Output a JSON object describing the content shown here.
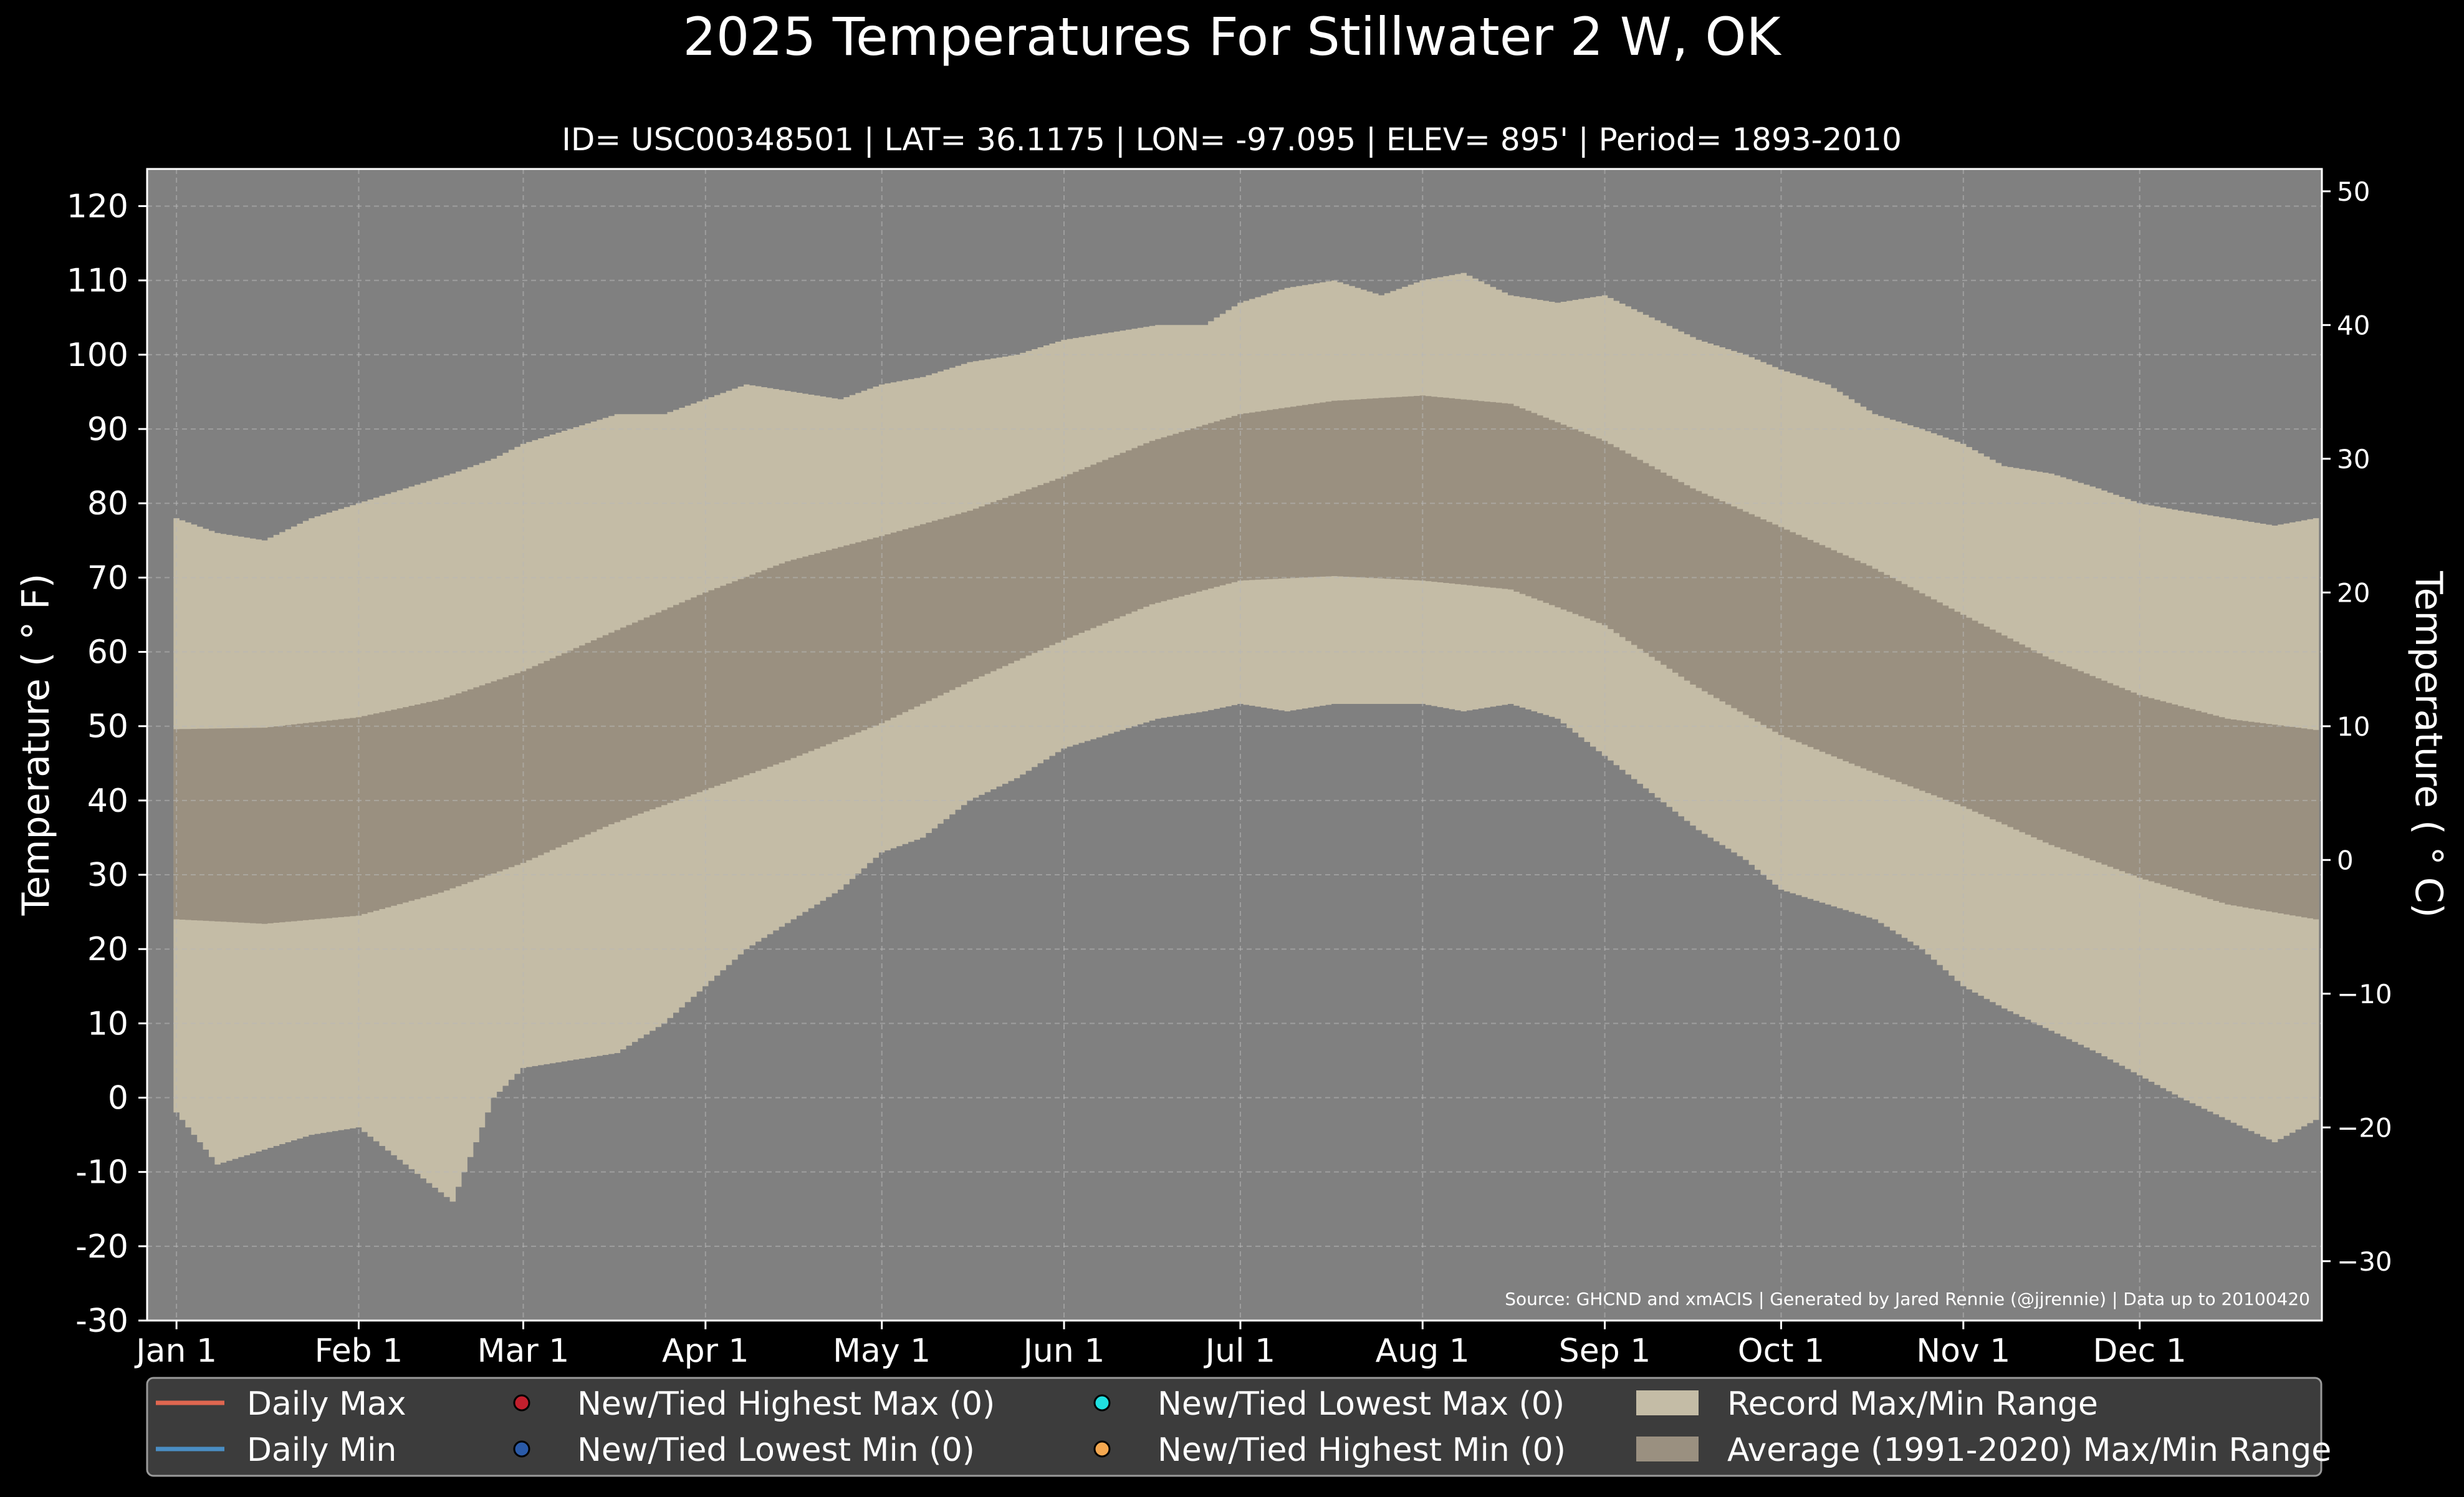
{
  "chart_data": {
    "type": "area",
    "title": "2025 Temperatures For Stillwater 2 W, OK",
    "subtitle": "ID= USC00348501 | LAT= 36.1175 | LON= -97.095 | ELEV= 895' | Period= 1893-2010",
    "ylabel": "Temperature ( ° F)",
    "y2label": "Temperature ( ° C)",
    "source": "Source: GHCND and xmACIS | Generated by Jared Rennie (@jjrennie) | Data up to 20100420",
    "ylim": [
      -30,
      125
    ],
    "y2lim": [
      -34.44,
      51.67
    ],
    "yticks": [
      -30,
      -20,
      -10,
      0,
      10,
      20,
      30,
      40,
      50,
      60,
      70,
      80,
      90,
      100,
      110,
      120
    ],
    "y2ticks": [
      -30,
      -20,
      -10,
      0,
      10,
      20,
      30,
      40,
      50
    ],
    "x_months": [
      {
        "label": "Jan 1",
        "day": 1
      },
      {
        "label": "Feb 1",
        "day": 32
      },
      {
        "label": "Mar 1",
        "day": 60
      },
      {
        "label": "Apr 1",
        "day": 91
      },
      {
        "label": "May 1",
        "day": 121
      },
      {
        "label": "Jun 1",
        "day": 152
      },
      {
        "label": "Jul 1",
        "day": 182
      },
      {
        "label": "Aug 1",
        "day": 213
      },
      {
        "label": "Sep 1",
        "day": 244
      },
      {
        "label": "Oct 1",
        "day": 274
      },
      {
        "label": "Nov 1",
        "day": 305
      },
      {
        "label": "Dec 1",
        "day": 335
      }
    ],
    "xlim": [
      -4,
      366
    ],
    "grid": true,
    "legend_position": "bottom",
    "colors": {
      "background": "#000000",
      "plot_background": "#808080",
      "record_range": "#c4bca6",
      "normal_range": "#9a9080",
      "grid": "#b8b8b8",
      "text": "#ffffff",
      "legend_background": "#3c3c3c",
      "daily_max": "#e06650",
      "daily_min": "#4a8ec4",
      "new_highest_max": "#c21f2d",
      "new_lowest_min": "#2a5aa8",
      "new_lowest_max": "#20e0e0",
      "new_highest_min": "#f5a850"
    },
    "series": [
      {
        "name": "Record Max/Min Range",
        "x": [
          1,
          8,
          16,
          24,
          32,
          40,
          48,
          55,
          60,
          68,
          76,
          84,
          91,
          98,
          106,
          114,
          121,
          128,
          136,
          144,
          152,
          160,
          168,
          176,
          182,
          190,
          198,
          206,
          213,
          220,
          228,
          236,
          244,
          252,
          260,
          268,
          274,
          282,
          290,
          298,
          305,
          312,
          320,
          328,
          335,
          342,
          350,
          358,
          365
        ],
        "record_max": [
          78,
          76,
          75,
          78,
          80,
          82,
          84,
          86,
          88,
          90,
          92,
          92,
          94,
          96,
          95,
          94,
          96,
          97,
          99,
          100,
          102,
          103,
          104,
          104,
          107,
          109,
          110,
          108,
          110,
          111,
          108,
          107,
          108,
          105,
          102,
          100,
          98,
          96,
          92,
          90,
          88,
          85,
          84,
          82,
          80,
          79,
          78,
          77,
          78
        ],
        "record_min": [
          -2,
          -9,
          -7,
          -5,
          -4,
          -9,
          -14,
          0,
          4,
          5,
          6,
          10,
          15,
          20,
          24,
          28,
          33,
          35,
          40,
          43,
          47,
          49,
          51,
          52,
          53,
          52,
          53,
          53,
          53,
          52,
          53,
          51,
          46,
          41,
          36,
          32,
          28,
          26,
          24,
          20,
          15,
          12,
          9,
          6,
          3,
          0,
          -3,
          -6,
          -3
        ]
      },
      {
        "name": "Average (1991-2020) Max/Min Range",
        "x": [
          1,
          16,
          32,
          46,
          60,
          75,
          91,
          105,
          121,
          136,
          152,
          167,
          182,
          198,
          213,
          228,
          244,
          259,
          274,
          289,
          305,
          320,
          335,
          350,
          365
        ],
        "normal_max": [
          49.6,
          49.8,
          51.2,
          53.6,
          57.4,
          62.6,
          68.0,
          72.2,
          75.6,
          79.0,
          83.6,
          88.4,
          92.0,
          93.8,
          94.5,
          93.4,
          88.4,
          82.0,
          76.8,
          71.6,
          65.0,
          59.0,
          54.2,
          51.0,
          49.5
        ],
        "normal_min": [
          24.0,
          23.4,
          24.5,
          27.6,
          31.6,
          36.8,
          41.4,
          45.4,
          50.4,
          56.0,
          61.6,
          66.4,
          69.6,
          70.2,
          69.6,
          68.4,
          63.6,
          55.6,
          48.8,
          44.0,
          39.2,
          34.0,
          29.6,
          26.0,
          24.0
        ]
      }
    ],
    "legend": [
      {
        "label": "Daily Max",
        "kind": "line",
        "color": "#e06650"
      },
      {
        "label": "Daily Min",
        "kind": "line",
        "color": "#4a8ec4"
      },
      {
        "label": "New/Tied Highest Max (0)",
        "kind": "dot",
        "color": "#c21f2d"
      },
      {
        "label": "New/Tied Lowest Min (0)",
        "kind": "dot",
        "color": "#2a5aa8"
      },
      {
        "label": "New/Tied Lowest Max (0)",
        "kind": "dot",
        "color": "#20e0e0"
      },
      {
        "label": "New/Tied Highest Min (0)",
        "kind": "dot",
        "color": "#f5a850"
      },
      {
        "label": "Record Max/Min Range",
        "kind": "patch",
        "color": "#c4bca6"
      },
      {
        "label": "Average (1991-2020) Max/Min Range",
        "kind": "patch",
        "color": "#9a9080"
      }
    ]
  }
}
